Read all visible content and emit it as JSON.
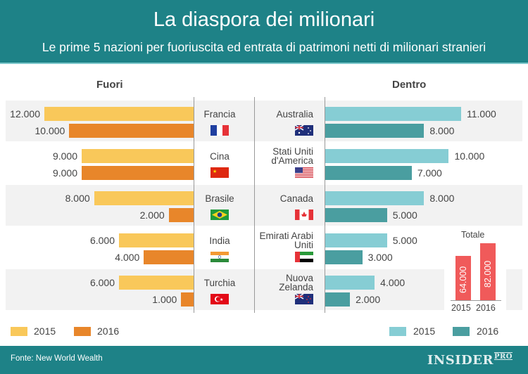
{
  "header": {
    "title": "La diaspora dei milionari",
    "subtitle": "Le prime 5 nazioni per fuoriuscita ed entrata di patrimoni netti di milionari stranieri"
  },
  "chart_data": [
    {
      "type": "bar",
      "orientation": "horizontal",
      "title": "Fuori",
      "categories": [
        "Francia",
        "Cina",
        "Brasile",
        "India",
        "Turchia"
      ],
      "flags": [
        "france-flag-icon",
        "china-flag-icon",
        "brazil-flag-icon",
        "india-flag-icon",
        "turkey-flag-icon"
      ],
      "series": [
        {
          "name": "2015",
          "color": "#f9c85a",
          "values": [
            12000,
            9000,
            8000,
            6000,
            6000
          ],
          "labels": [
            "12.000",
            "9.000",
            "8.000",
            "6.000",
            "6.000"
          ]
        },
        {
          "name": "2016",
          "color": "#e8862a",
          "values": [
            10000,
            9000,
            2000,
            4000,
            1000
          ],
          "labels": [
            "10.000",
            "9.000",
            "2.000",
            "4.000",
            "1.000"
          ]
        }
      ]
    },
    {
      "type": "bar",
      "orientation": "horizontal",
      "title": "Dentro",
      "categories": [
        "Australia",
        "Stati Uniti\nd'America",
        "Canada",
        "Emirati Arabi\nUniti",
        "Nuova\nZelanda"
      ],
      "flags": [
        "australia-flag-icon",
        "usa-flag-icon",
        "canada-flag-icon",
        "uae-flag-icon",
        "new-zealand-flag-icon"
      ],
      "series": [
        {
          "name": "2015",
          "color": "#86cdd4",
          "values": [
            11000,
            10000,
            8000,
            5000,
            4000
          ],
          "labels": [
            "11.000",
            "10.000",
            "8.000",
            "5.000",
            "4.000"
          ]
        },
        {
          "name": "2016",
          "color": "#4a9ea0",
          "values": [
            8000,
            7000,
            5000,
            3000,
            2000
          ],
          "labels": [
            "8.000",
            "7.000",
            "5.000",
            "3.000",
            "2.000"
          ]
        }
      ]
    },
    {
      "type": "bar",
      "title": "Totale",
      "categories": [
        "2015",
        "2016"
      ],
      "values": [
        64000,
        82000
      ],
      "labels": [
        "64.000",
        "82.000"
      ],
      "color": "#f05a5a"
    }
  ],
  "legend_left": [
    "2015",
    "2016"
  ],
  "legend_right": [
    "2015",
    "2016"
  ],
  "footer": {
    "source": "Fonte: New World Wealth",
    "logo": "INSIDER",
    "logo_suffix": "PRO"
  }
}
